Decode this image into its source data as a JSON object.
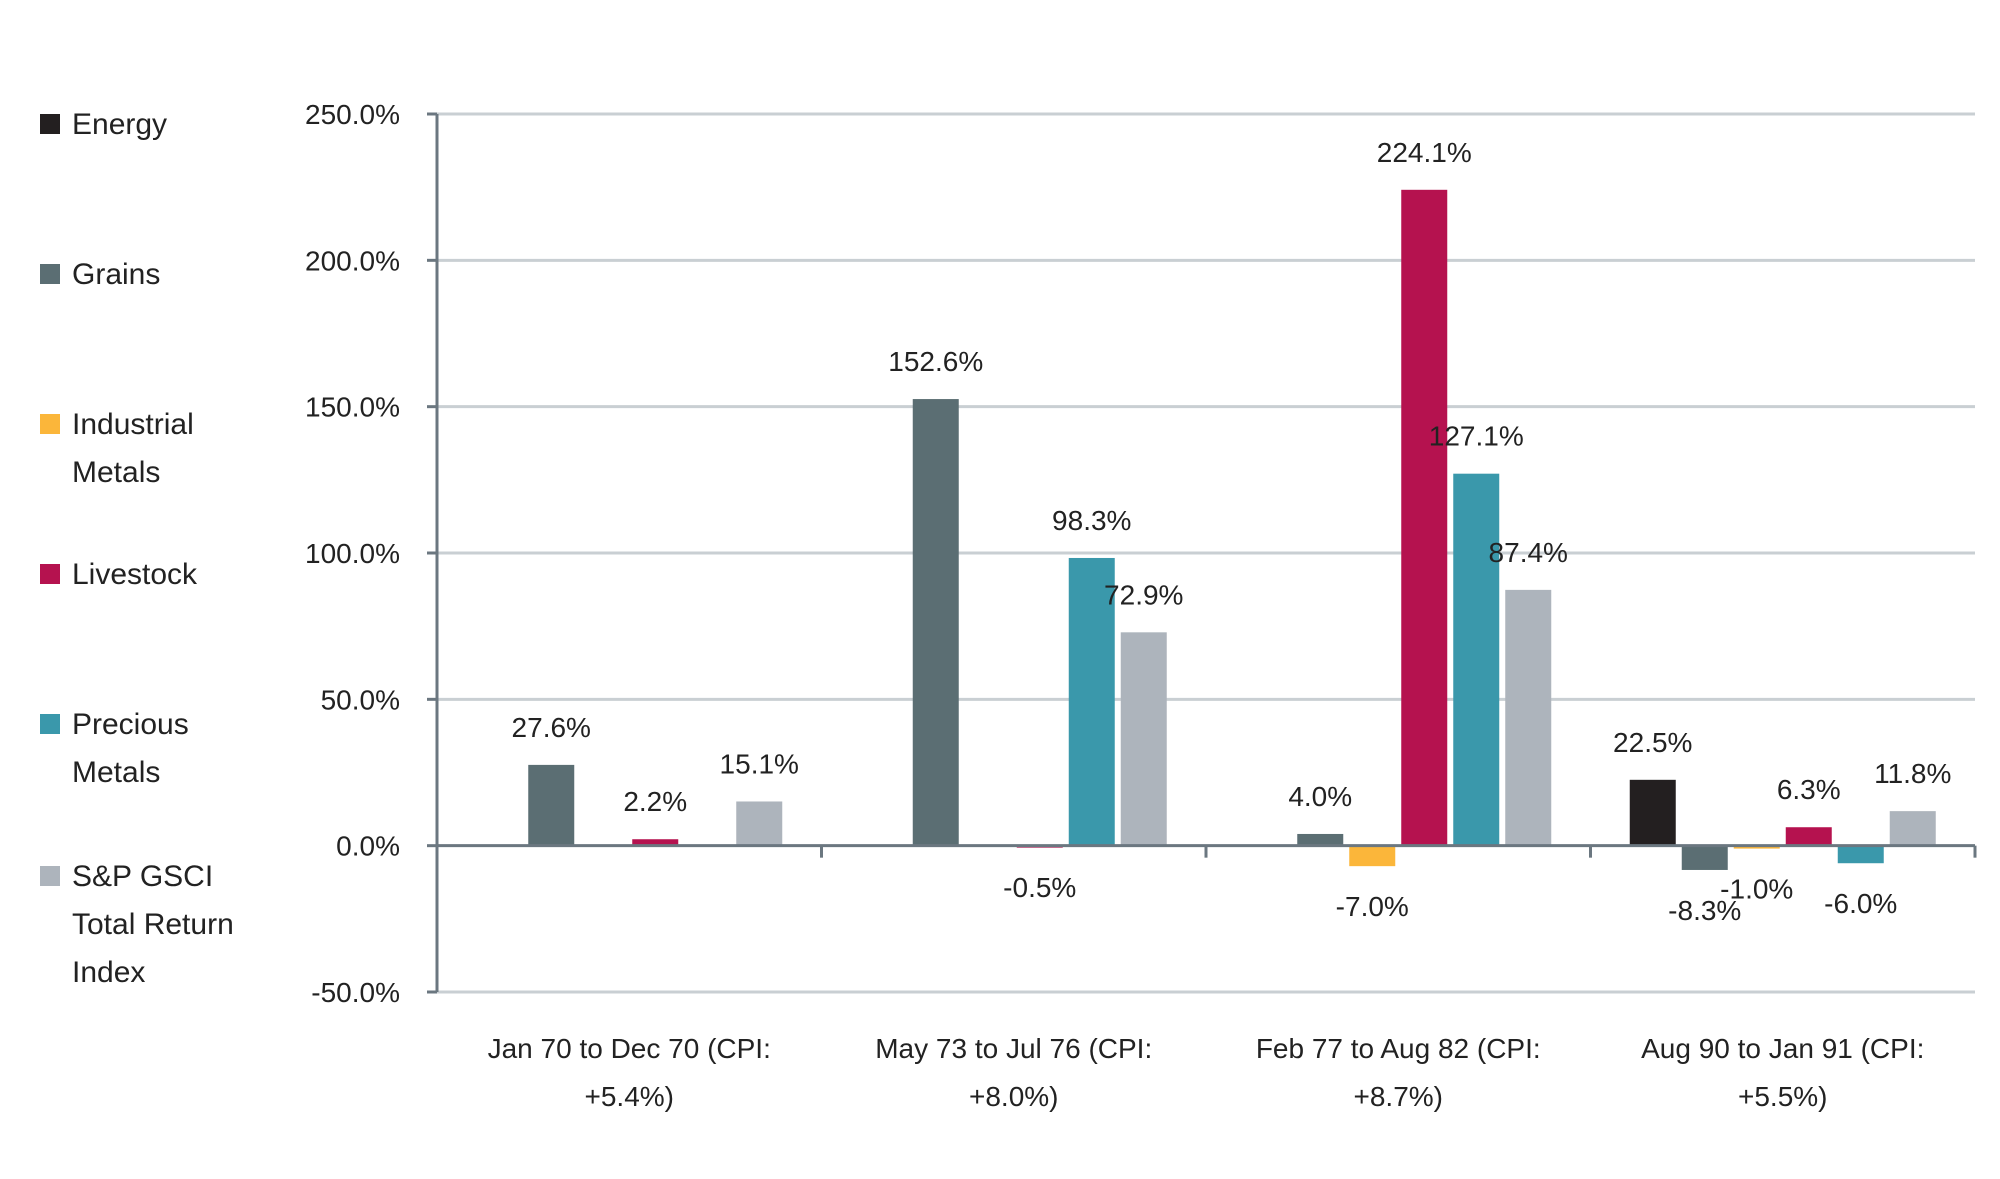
{
  "chart_data": {
    "type": "bar",
    "categories": [
      [
        "Jan 70 to Dec 70 (CPI:",
        "+5.4%)"
      ],
      [
        "May 73 to  Jul 76 (CPI:",
        "+8.0%)"
      ],
      [
        "Feb 77  to Aug 82 (CPI:",
        "+8.7%)"
      ],
      [
        "Aug 90 to Jan 91 (CPI:",
        "+5.5%)"
      ]
    ],
    "series": [
      {
        "name": "Energy",
        "legend": [
          "Energy"
        ],
        "color": "#231f20",
        "values": [
          null,
          null,
          null,
          22.5
        ],
        "labels": [
          null,
          null,
          null,
          "22.5%"
        ]
      },
      {
        "name": "Grains",
        "legend": [
          "Grains"
        ],
        "color": "#5b6e73",
        "values": [
          27.6,
          152.6,
          4.0,
          -8.3
        ],
        "labels": [
          "27.6%",
          "152.6%",
          "4.0%",
          "-8.3%"
        ]
      },
      {
        "name": "Industrial Metals",
        "legend": [
          "Industrial",
          "Metals"
        ],
        "color": "#fbb63a",
        "values": [
          null,
          null,
          -7.0,
          -1.0
        ],
        "labels": [
          null,
          null,
          "-7.0%",
          "-1.0%"
        ]
      },
      {
        "name": "Livestock",
        "legend": [
          "Livestock"
        ],
        "color": "#b5124f",
        "values": [
          2.2,
          -0.5,
          224.1,
          6.3
        ],
        "labels": [
          "2.2%",
          "-0.5%",
          "224.1%",
          "6.3%"
        ]
      },
      {
        "name": "Precious Metals",
        "legend": [
          "Precious",
          "Metals"
        ],
        "color": "#3a98ab",
        "values": [
          null,
          98.3,
          127.1,
          -6.0
        ],
        "labels": [
          null,
          "98.3%",
          "127.1%",
          "-6.0%"
        ]
      },
      {
        "name": "S&P GSCI Total Return Index",
        "legend": [
          "S&P GSCI",
          "Total Return",
          "Index"
        ],
        "color": "#adb4bc",
        "values": [
          15.1,
          72.9,
          87.4,
          11.8
        ],
        "labels": [
          "15.1%",
          "72.9%",
          "87.4%",
          "11.8%"
        ]
      }
    ],
    "yticks": [
      "-50.0%",
      "0.0%",
      "50.0%",
      "100.0%",
      "150.0%",
      "200.0%",
      "250.0%"
    ],
    "ylim": [
      -50,
      250
    ],
    "grid": true,
    "legend_position": "left"
  }
}
